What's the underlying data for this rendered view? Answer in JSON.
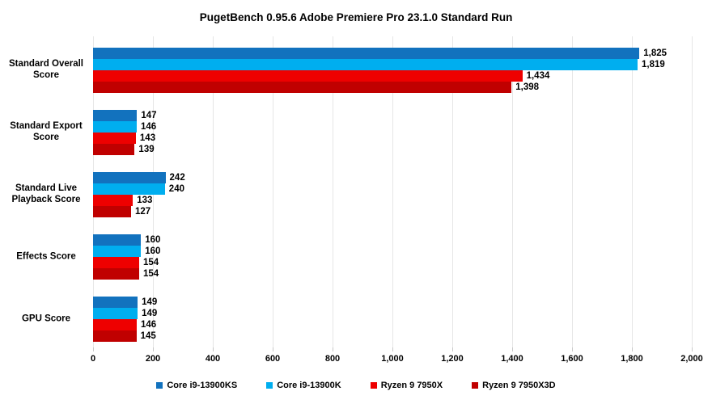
{
  "chart_data": {
    "type": "bar",
    "orientation": "horizontal",
    "title": "PugetBench 0.95.6 Adobe Premiere Pro 23.1.0 Standard Run",
    "categories": [
      "Standard Overall Score",
      "Standard Export Score",
      "Standard Live Playback Score",
      "Effects Score",
      "GPU Score"
    ],
    "series": [
      {
        "name": "Core i9-13900KS",
        "color": "#1272BE",
        "values": [
          1825,
          147,
          242,
          160,
          149
        ]
      },
      {
        "name": "Core i9-13900K",
        "color": "#00AEEF",
        "values": [
          1819,
          146,
          240,
          160,
          149
        ]
      },
      {
        "name": "Ryzen 9 7950X",
        "color": "#EE0000",
        "values": [
          1434,
          143,
          133,
          154,
          146
        ]
      },
      {
        "name": "Ryzen 9 7950X3D",
        "color": "#C00000",
        "values": [
          1398,
          139,
          127,
          154,
          145
        ]
      }
    ],
    "xlabel": "",
    "ylabel": "",
    "xlim": [
      0,
      2000
    ],
    "x_ticks": [
      0,
      200,
      400,
      600,
      800,
      1000,
      1200,
      1400,
      1600,
      1800,
      2000
    ],
    "x_tick_labels": [
      "0",
      "200",
      "400",
      "600",
      "800",
      "1,000",
      "1,200",
      "1,400",
      "1,600",
      "1,800",
      "2,000"
    ],
    "value_labels": [
      "1,825",
      "1,819",
      "1,434",
      "1,398",
      "147",
      "146",
      "143",
      "139",
      "242",
      "240",
      "133",
      "127",
      "160",
      "160",
      "154",
      "154",
      "149",
      "149",
      "146",
      "145"
    ],
    "grid": "vertical-on",
    "legend_position": "bottom",
    "value_labels_shown": true
  }
}
